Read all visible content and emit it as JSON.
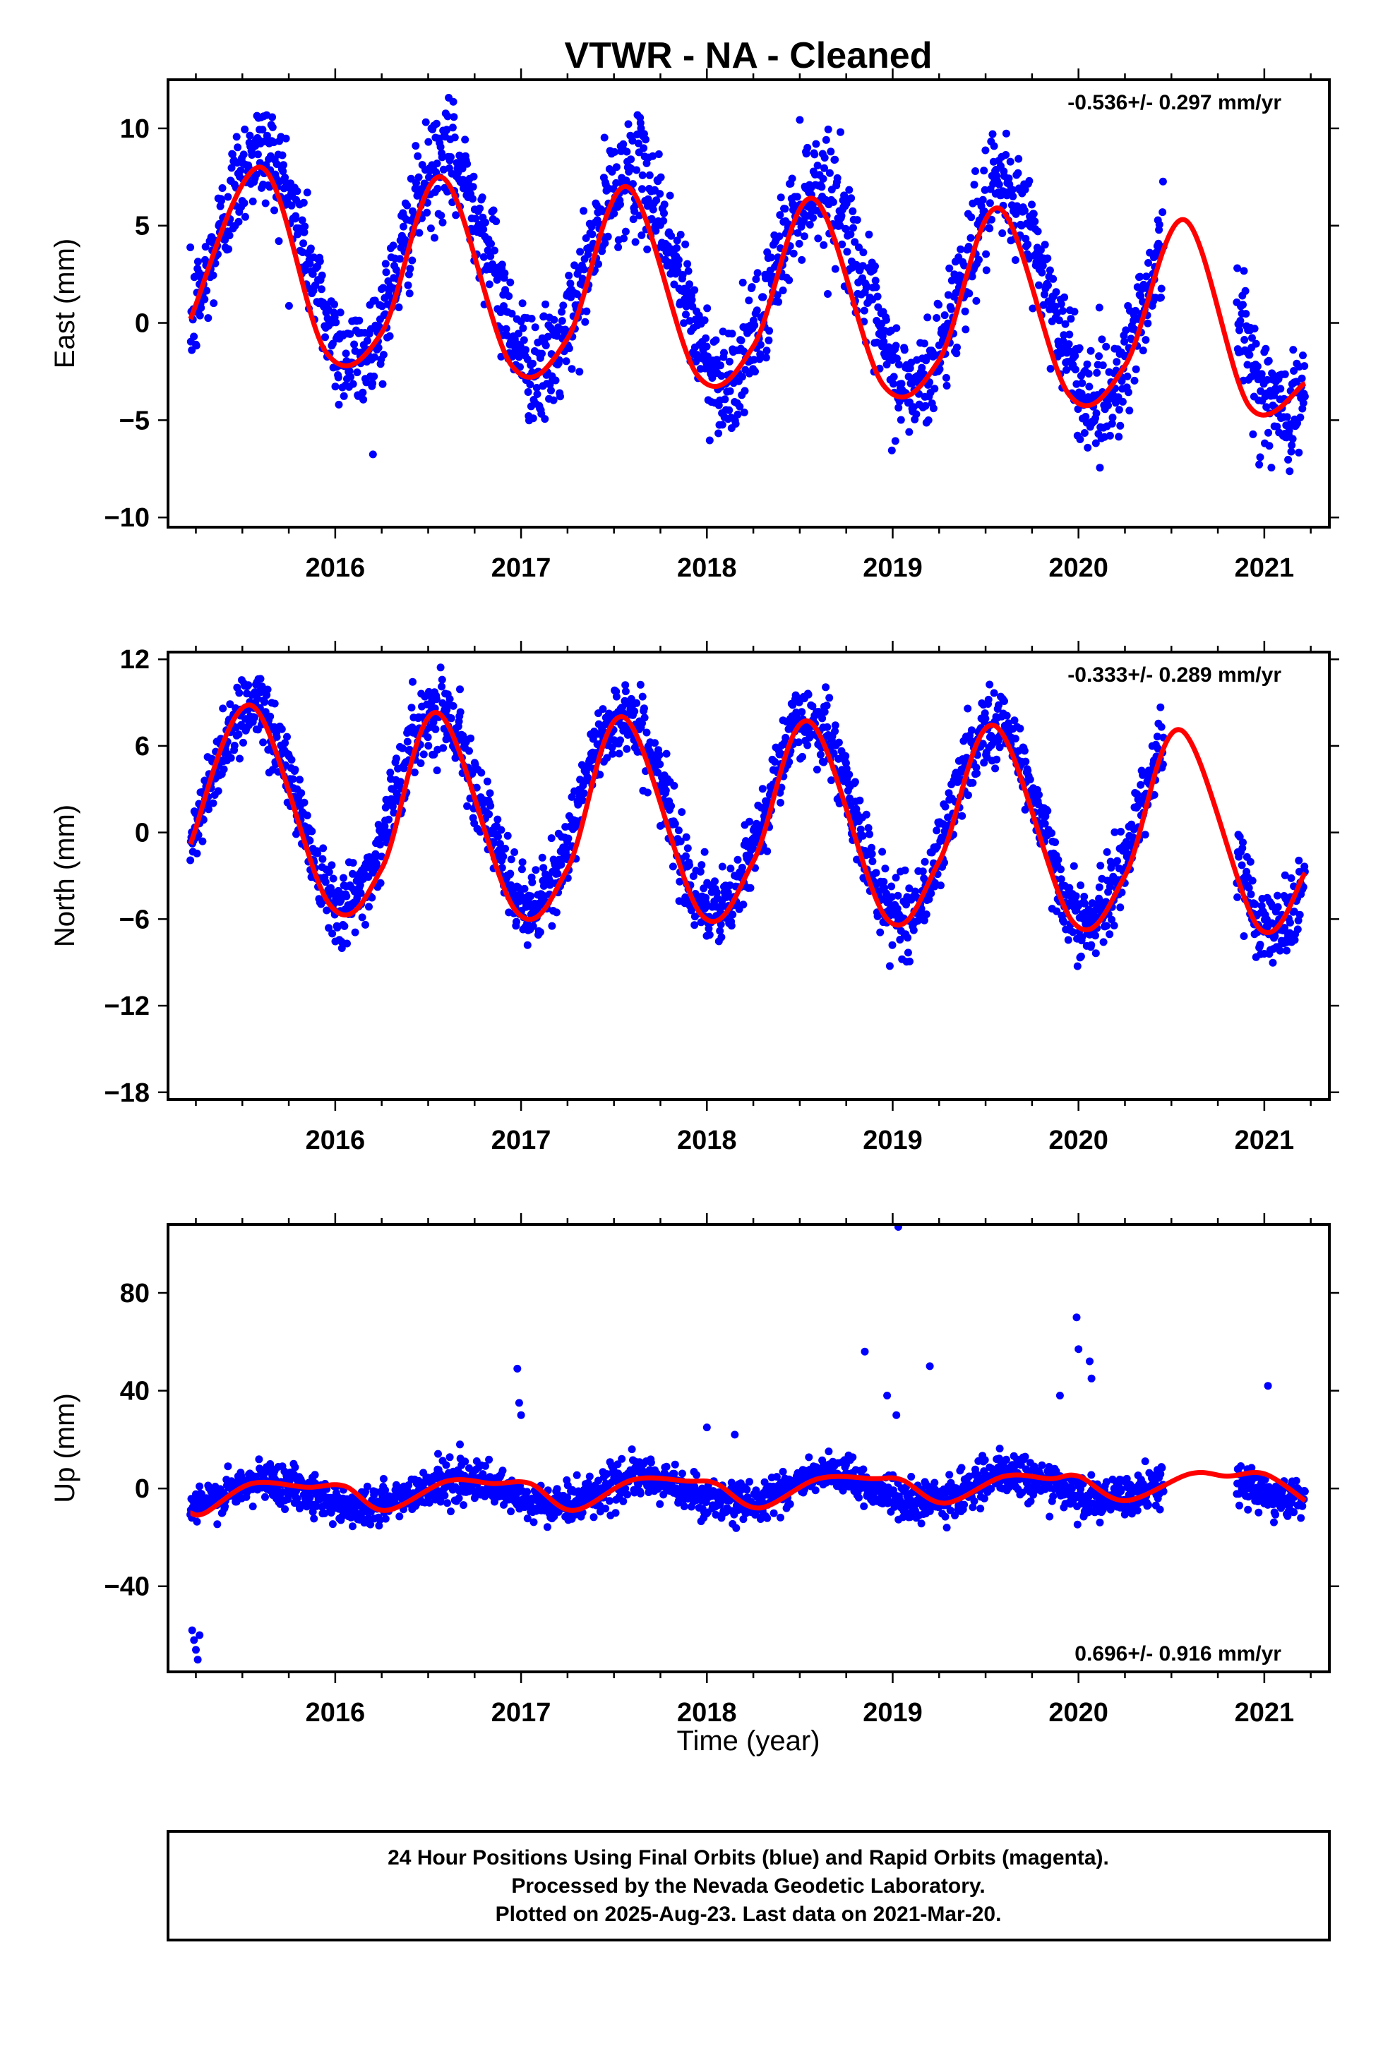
{
  "title": "VTWR  - NA - Cleaned",
  "x_axis_label": "Time (year)",
  "footer": [
    "24 Hour Positions Using Final Orbits (blue) and Rapid Orbits (magenta).",
    "Processed by the Nevada Geodetic Laboratory.",
    "Plotted on 2025-Aug-23. Last data on 2021-Mar-20."
  ],
  "colors": {
    "data_points": "#0000ff",
    "fit_curve": "#ff0000",
    "frame": "#000000"
  },
  "chart_data": [
    {
      "type": "scatter",
      "ylabel": "East (mm)",
      "rate_label": "-0.536+/- 0.297 mm/yr",
      "rate_position": "top-right",
      "xlim": [
        2015.1,
        2021.35
      ],
      "ylim": [
        -10.5,
        12.5
      ],
      "x_ticks": [
        2016,
        2017,
        2018,
        2019,
        2020,
        2021
      ],
      "y_ticks": [
        -10,
        -5,
        0,
        5,
        10
      ],
      "series": [
        {
          "kind": "points",
          "x_start": 2015.22,
          "x_end": 2021.22,
          "gap": [
            2020.46,
            2020.85
          ],
          "model": {
            "mean": 2.3,
            "trend_per_yr": -0.536,
            "ref_year": 2018.0,
            "annual_amp": 5.2,
            "annual_peak": 2015.6,
            "scatter_sd": 1.4
          }
        },
        {
          "kind": "fit",
          "x_start": 2015.22,
          "x_end": 2021.22,
          "knots": [
            [
              2015.22,
              0.2
            ],
            [
              2015.6,
              8.0
            ],
            [
              2015.95,
              -1.5
            ],
            [
              2016.25,
              -0.5
            ],
            [
              2016.57,
              7.5
            ],
            [
              2016.95,
              -2.2
            ],
            [
              2017.25,
              -0.8
            ],
            [
              2017.57,
              7.0
            ],
            [
              2017.95,
              -2.7
            ],
            [
              2018.25,
              -1.2
            ],
            [
              2018.57,
              6.4
            ],
            [
              2018.95,
              -3.2
            ],
            [
              2019.25,
              -1.9
            ],
            [
              2019.57,
              5.9
            ],
            [
              2019.95,
              -3.7
            ],
            [
              2020.25,
              -2.2
            ],
            [
              2020.57,
              5.3
            ],
            [
              2020.92,
              -4.3
            ],
            [
              2021.22,
              -3.1
            ]
          ]
        }
      ]
    },
    {
      "type": "scatter",
      "ylabel": "North (mm)",
      "rate_label": "-0.333+/- 0.289 mm/yr",
      "rate_position": "top-right",
      "xlim": [
        2015.1,
        2021.35
      ],
      "ylim": [
        -18.5,
        12.5
      ],
      "x_ticks": [
        2016,
        2017,
        2018,
        2019,
        2020,
        2021
      ],
      "y_ticks": [
        -18,
        -12,
        -6,
        0,
        6,
        12
      ],
      "series": [
        {
          "kind": "points",
          "x_start": 2015.22,
          "x_end": 2021.22,
          "gap": [
            2020.46,
            2020.85
          ],
          "model": {
            "mean": 1.2,
            "trend_per_yr": -0.333,
            "ref_year": 2018.0,
            "annual_amp": 6.8,
            "annual_peak": 2015.55,
            "scatter_sd": 1.3
          }
        },
        {
          "kind": "fit",
          "x_start": 2015.22,
          "x_end": 2021.22,
          "knots": [
            [
              2015.22,
              -0.8
            ],
            [
              2015.55,
              8.8
            ],
            [
              2015.97,
              -5.0
            ],
            [
              2016.25,
              -2.5
            ],
            [
              2016.55,
              8.3
            ],
            [
              2016.97,
              -5.4
            ],
            [
              2017.25,
              -2.5
            ],
            [
              2017.55,
              8.0
            ],
            [
              2017.97,
              -5.7
            ],
            [
              2018.25,
              -2.0
            ],
            [
              2018.55,
              7.7
            ],
            [
              2018.97,
              -6.0
            ],
            [
              2019.25,
              -2.0
            ],
            [
              2019.55,
              7.4
            ],
            [
              2019.97,
              -6.2
            ],
            [
              2020.25,
              -3.0
            ],
            [
              2020.55,
              7.1
            ],
            [
              2020.97,
              -6.6
            ],
            [
              2021.22,
              -2.8
            ]
          ]
        }
      ]
    },
    {
      "type": "scatter",
      "ylabel": "Up (mm)",
      "rate_label": "0.696+/- 0.916 mm/yr",
      "rate_position": "bottom-right",
      "xlim": [
        2015.1,
        2021.35
      ],
      "ylim": [
        -75,
        108
      ],
      "x_ticks": [
        2016,
        2017,
        2018,
        2019,
        2020,
        2021
      ],
      "y_ticks": [
        -40,
        0,
        40,
        80
      ],
      "series": [
        {
          "kind": "points",
          "x_start": 2015.22,
          "x_end": 2021.22,
          "gap": [
            2020.46,
            2020.85
          ],
          "model": {
            "mean": -1.0,
            "trend_per_yr": 0.696,
            "ref_year": 2018.0,
            "annual_amp": 5.5,
            "annual_peak": 2015.65,
            "scatter_sd": 4.0
          },
          "outliers": [
            [
              2015.23,
              -58
            ],
            [
              2015.24,
              -62
            ],
            [
              2015.25,
              -66
            ],
            [
              2015.26,
              -70
            ],
            [
              2015.27,
              -60
            ],
            [
              2016.98,
              49
            ],
            [
              2016.99,
              35
            ],
            [
              2017.0,
              30
            ],
            [
              2018.0,
              25
            ],
            [
              2018.15,
              22
            ],
            [
              2018.85,
              56
            ],
            [
              2018.97,
              38
            ],
            [
              2019.02,
              30
            ],
            [
              2019.03,
              107
            ],
            [
              2019.2,
              50
            ],
            [
              2019.9,
              38
            ],
            [
              2019.99,
              70
            ],
            [
              2020.0,
              57
            ],
            [
              2020.06,
              52
            ],
            [
              2020.07,
              45
            ],
            [
              2021.02,
              42
            ]
          ]
        },
        {
          "kind": "fit",
          "x_start": 2015.22,
          "x_end": 2021.22,
          "knots": [
            [
              2015.22,
              -10
            ],
            [
              2015.3,
              -10
            ],
            [
              2015.55,
              2
            ],
            [
              2015.85,
              0.5
            ],
            [
              2016.05,
              1
            ],
            [
              2016.27,
              -9
            ],
            [
              2016.6,
              3
            ],
            [
              2016.85,
              2
            ],
            [
              2017.05,
              2
            ],
            [
              2017.28,
              -9
            ],
            [
              2017.6,
              3.5
            ],
            [
              2017.9,
              3
            ],
            [
              2018.05,
              2
            ],
            [
              2018.28,
              -8
            ],
            [
              2018.6,
              4
            ],
            [
              2018.9,
              4
            ],
            [
              2019.05,
              3.5
            ],
            [
              2019.28,
              -6
            ],
            [
              2019.6,
              5
            ],
            [
              2019.85,
              4
            ],
            [
              2020.0,
              5
            ],
            [
              2020.25,
              -5
            ],
            [
              2020.6,
              6
            ],
            [
              2020.8,
              5
            ],
            [
              2021.0,
              6
            ],
            [
              2021.22,
              -5
            ]
          ]
        }
      ]
    }
  ]
}
